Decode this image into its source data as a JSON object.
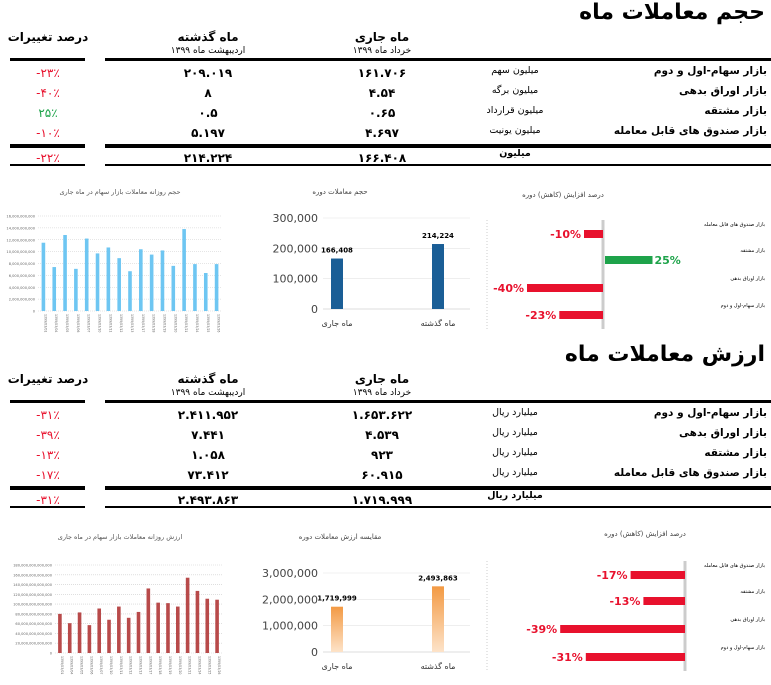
{
  "volume": {
    "title": "حجم معاملات ماه",
    "headers": {
      "current": "ماه جاری",
      "current_sub": "خرداد ماه ۱۳۹۹",
      "previous": "ماه گذشته",
      "previous_sub": "اردیبهشت ماه ۱۳۹۹",
      "change": "درصد تغییرات"
    },
    "rows": [
      {
        "label": "بازار سهام-اول و دوم",
        "unit": "میلیون سهم",
        "current": "۱۶۱.۷۰۶",
        "previous": "۲۰۹.۰۱۹",
        "change": "-۲۳٪",
        "dir": "neg"
      },
      {
        "label": "بازار اوراق بدهی",
        "unit": "میلیون برگه",
        "current": "۴.۵۴",
        "previous": "۸",
        "change": "-۴۰٪",
        "dir": "neg"
      },
      {
        "label": "بازار مشتقه",
        "unit": "میلیون قرارداد",
        "current": "۰.۶۵",
        "previous": "۰.۵",
        "change": "۲۵٪",
        "dir": "pos"
      },
      {
        "label": "بازار صندوق های قابل معامله",
        "unit": "میلیون یونیت",
        "current": "۴.۶۹۷",
        "previous": "۵.۱۹۷",
        "change": "-۱۰٪",
        "dir": "neg"
      }
    ],
    "total": {
      "unit": "میلیون",
      "current": "۱۶۶.۴۰۸",
      "previous": "۲۱۴.۲۲۴",
      "change": "-۲۲٪"
    }
  },
  "value": {
    "title": "ارزش معاملات ماه",
    "headers": {
      "current": "ماه جاری",
      "current_sub": "خرداد ماه ۱۳۹۹",
      "previous": "ماه گذشته",
      "previous_sub": "اردیبهشت ماه ۱۳۹۹",
      "change": "درصد تغییرات"
    },
    "rows": [
      {
        "label": "بازار سهام-اول و دوم",
        "unit": "میلیارد ریال",
        "current": "۱.۶۵۳.۶۲۲",
        "previous": "۲.۴۱۱.۹۵۲",
        "change": "-۳۱٪",
        "dir": "neg"
      },
      {
        "label": "بازار اوراق بدهی",
        "unit": "میلیارد ریال",
        "current": "۴.۵۳۹",
        "previous": "۷.۴۴۱",
        "change": "-۳۹٪",
        "dir": "neg"
      },
      {
        "label": "بازار مشتقه",
        "unit": "میلیارد ریال",
        "current": "۹۲۳",
        "previous": "۱.۰۵۸",
        "change": "-۱۳٪",
        "dir": "neg"
      },
      {
        "label": "بازار صندوق های قابل معامله",
        "unit": "میلیارد ریال",
        "current": "۶۰.۹۱۵",
        "previous": "۷۳.۴۱۲",
        "change": "-۱۷٪",
        "dir": "neg"
      }
    ],
    "total": {
      "unit": "میلیارد ریال",
      "current": "۱.۷۱۹.۹۹۹",
      "previous": "۲.۴۹۳.۸۶۳",
      "change": "-۳۱٪"
    }
  },
  "colors": {
    "neg": "#e8112d",
    "pos": "#1ea34a",
    "daily_volume": "#6ec6f2",
    "daily_value": "#b84a4a",
    "period_volume": "#1a5e96",
    "period_value": "#f39a44"
  },
  "chart_data": [
    {
      "id": "daily_volume",
      "type": "bar",
      "title": "حجم روزانه معاملات بازار سهام در ماه جاری",
      "ylim": [
        0,
        16000000000
      ],
      "yticks": [
        "0",
        "2,000,000,000",
        "4,000,000,000",
        "6,000,000,000",
        "8,000,000,000",
        "10,000,000,000",
        "12,000,000,000",
        "14,000,000,000",
        "16,000,000,000"
      ],
      "categories": [
        "1399/03/01",
        "1399/03/04",
        "1399/03/05",
        "1399/03/06",
        "1399/03/07",
        "1399/03/10",
        "1399/03/11",
        "1399/03/12",
        "1399/03/13",
        "1399/03/17",
        "1399/03/18",
        "1399/03/19",
        "1399/03/20",
        "1399/03/21",
        "1399/03/24",
        "1399/03/25",
        "1399/03/26"
      ],
      "values": [
        11500000000,
        7400000000,
        12800000000,
        7100000000,
        12200000000,
        9700000000,
        10700000000,
        8900000000,
        6700000000,
        10400000000,
        9500000000,
        10200000000,
        7600000000,
        13800000000,
        7900000000,
        6400000000,
        7900000000
      ]
    },
    {
      "id": "period_volume",
      "type": "bar",
      "title": "حجم معاملات دوره",
      "ylim": [
        0,
        300000
      ],
      "yticks": [
        "0",
        "100,000",
        "200,000",
        "300,000"
      ],
      "categories": [
        "ماه جاری",
        "ماه گذشته"
      ],
      "values": [
        166408,
        214224
      ],
      "labels": [
        "166,408",
        "214,224"
      ]
    },
    {
      "id": "volume_change",
      "type": "bar",
      "title": "درصد افزایش (کاهش) دوره",
      "xlim": [
        -40,
        25
      ],
      "categories": [
        "بازار صندوق های قابل معامله",
        "بازار مشتقه",
        "بازار اوراق بدهی",
        "بازار سهام-اول و دوم"
      ],
      "values": [
        -10,
        25,
        -40,
        -23
      ],
      "labels": [
        "-10%",
        "25%",
        "-40%",
        "-23%"
      ]
    },
    {
      "id": "daily_value",
      "type": "bar",
      "title": "ارزش روزانه معاملات بازار سهام در ماه جاری",
      "ylim": [
        0,
        180000000000000
      ],
      "yticks": [
        "0",
        "20,000,000,000,000",
        "40,000,000,000,000",
        "60,000,000,000,000",
        "80,000,000,000,000",
        "100,000,000,000,000",
        "120,000,000,000,000",
        "140,000,000,000,000",
        "160,000,000,000,000",
        "180,000,000,000,000"
      ],
      "categories": [
        "1399/03/01",
        "1399/03/04",
        "1399/03/05",
        "1399/03/06",
        "1399/03/07",
        "1399/03/10",
        "1399/03/11",
        "1399/03/12",
        "1399/03/13",
        "1399/03/17",
        "1399/03/18",
        "1399/03/19",
        "1399/03/20",
        "1399/03/21",
        "1399/03/24",
        "1399/03/25",
        "1399/03/26"
      ],
      "values": [
        80000000000000,
        61000000000000,
        83000000000000,
        57000000000000,
        91000000000000,
        68000000000000,
        95000000000000,
        72000000000000,
        84000000000000,
        132000000000000,
        103000000000000,
        102000000000000,
        95000000000000,
        154000000000000,
        127000000000000,
        111000000000000,
        109000000000000
      ]
    },
    {
      "id": "period_value",
      "type": "bar",
      "title": "مقایسه ارزش معاملات دوره",
      "ylim": [
        0,
        3000000
      ],
      "yticks": [
        "0",
        "1,000,000",
        "2,000,000",
        "3,000,000"
      ],
      "categories": [
        "ماه جاری",
        "ماه گذشته"
      ],
      "values": [
        1719999,
        2493863
      ],
      "labels": [
        "1,719,999",
        "2,493,863"
      ]
    },
    {
      "id": "value_change",
      "type": "bar",
      "title": "درصد افزایش (کاهش) دوره",
      "xlim": [
        -39,
        0
      ],
      "categories": [
        "بازار صندوق های قابل معامله",
        "بازار مشتقه",
        "بازار اوراق بدهی",
        "بازار سهام-اول و دوم"
      ],
      "values": [
        -17,
        -13,
        -39,
        -31
      ],
      "labels": [
        "-17%",
        "-13%",
        "-39%",
        "-31%"
      ]
    }
  ]
}
